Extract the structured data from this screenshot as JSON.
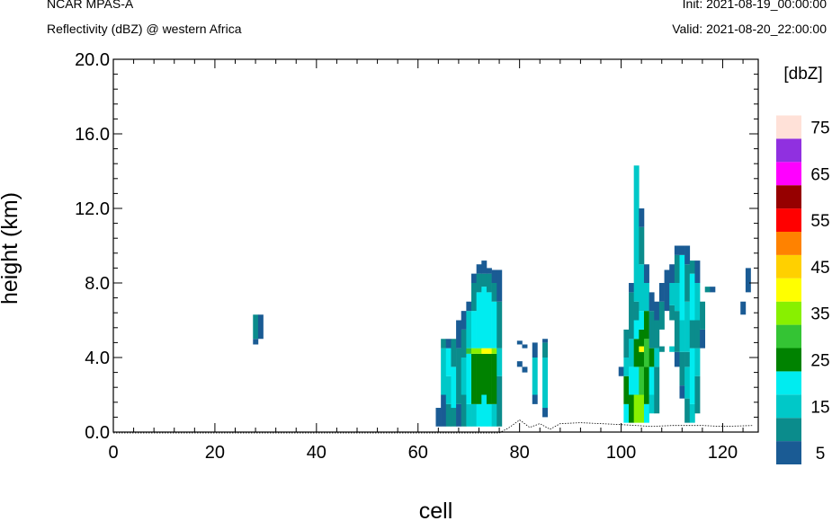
{
  "header": {
    "model": "NCAR MPAS-A",
    "field": "Reflectivity (dBZ) @ western Africa",
    "init": "Init: 2021-08-19_00:00:00",
    "valid": "Valid: 2021-08-20_22:00:00"
  },
  "chart_data": {
    "type": "heatmap",
    "title": "Reflectivity (dBZ) @ western Africa",
    "xlabel": "cell",
    "ylabel": "height (km)",
    "xlim": [
      0,
      127
    ],
    "ylim": [
      0,
      20
    ],
    "x_ticks": [
      "0",
      "20",
      "40",
      "60",
      "80",
      "100",
      "120"
    ],
    "y_ticks": [
      "0.0",
      "4.0",
      "8.0",
      "12.0",
      "16.0",
      "20.0"
    ],
    "colorbar": {
      "unit": "[dbZ]",
      "levels": [
        5,
        10,
        15,
        20,
        25,
        30,
        35,
        40,
        45,
        50,
        55,
        60,
        65,
        70,
        75
      ],
      "labels": [
        "5",
        "15",
        "25",
        "35",
        "45",
        "55",
        "65",
        "75"
      ],
      "colors": [
        "#1a5b94",
        "#0b8c8c",
        "#00c8c8",
        "#00ecf0",
        "#008200",
        "#34c434",
        "#88f000",
        "#ffff00",
        "#ffd000",
        "#ff8200",
        "#ff0000",
        "#960000",
        "#ff00ff",
        "#9030e0",
        "#ffe1d8"
      ]
    },
    "columns": [
      {
        "x": 28,
        "segs": [
          [
            4.7,
            5.0,
            5
          ],
          [
            5.0,
            6.3,
            10
          ]
        ]
      },
      {
        "x": 29,
        "segs": [
          [
            5.0,
            6.3,
            5
          ]
        ]
      },
      {
        "x": 64,
        "segs": [
          [
            0.3,
            1.3,
            5
          ]
        ]
      },
      {
        "x": 65,
        "segs": [
          [
            0.3,
            2.0,
            5
          ],
          [
            2.0,
            4.5,
            15
          ],
          [
            4.5,
            5.0,
            10
          ]
        ]
      },
      {
        "x": 66,
        "segs": [
          [
            0.3,
            1.5,
            10
          ],
          [
            1.5,
            3.0,
            15
          ],
          [
            3.0,
            4.5,
            20
          ],
          [
            4.5,
            5.0,
            5
          ]
        ]
      },
      {
        "x": 67,
        "segs": [
          [
            0.3,
            1.3,
            10
          ],
          [
            1.3,
            3.5,
            20
          ],
          [
            3.5,
            5.0,
            10
          ]
        ]
      },
      {
        "x": 68,
        "segs": [
          [
            0.3,
            1.5,
            5
          ],
          [
            1.5,
            4.5,
            10
          ],
          [
            4.5,
            6.0,
            5
          ]
        ]
      },
      {
        "x": 69,
        "segs": [
          [
            0.3,
            2.0,
            10
          ],
          [
            2.0,
            4.0,
            15
          ],
          [
            4.0,
            5.5,
            10
          ],
          [
            5.5,
            6.5,
            5
          ]
        ]
      },
      {
        "x": 70,
        "segs": [
          [
            0.3,
            1.5,
            15
          ],
          [
            1.5,
            4.2,
            20
          ],
          [
            4.2,
            4.5,
            30
          ],
          [
            4.5,
            6.5,
            15
          ],
          [
            6.5,
            7.0,
            5
          ]
        ]
      },
      {
        "x": 71,
        "segs": [
          [
            0.3,
            1.5,
            15
          ],
          [
            1.5,
            4.2,
            25
          ],
          [
            4.2,
            4.5,
            35
          ],
          [
            4.5,
            6.5,
            20
          ],
          [
            6.5,
            8.0,
            10
          ],
          [
            8.0,
            8.5,
            5
          ]
        ]
      },
      {
        "x": 72,
        "segs": [
          [
            0.3,
            1.5,
            20
          ],
          [
            1.5,
            4.2,
            25
          ],
          [
            4.2,
            4.5,
            35
          ],
          [
            4.5,
            7.5,
            20
          ],
          [
            7.5,
            8.5,
            10
          ],
          [
            8.5,
            9.0,
            5
          ]
        ]
      },
      {
        "x": 73,
        "segs": [
          [
            0.3,
            2.0,
            20
          ],
          [
            2.0,
            4.2,
            25
          ],
          [
            4.2,
            4.5,
            40
          ],
          [
            4.5,
            7.8,
            20
          ],
          [
            7.8,
            8.5,
            10
          ],
          [
            8.5,
            9.2,
            5
          ]
        ]
      },
      {
        "x": 74,
        "segs": [
          [
            0.3,
            1.5,
            20
          ],
          [
            1.5,
            4.2,
            25
          ],
          [
            4.2,
            4.5,
            40
          ],
          [
            4.5,
            7.5,
            20
          ],
          [
            7.5,
            8.5,
            10
          ],
          [
            8.5,
            8.8,
            5
          ]
        ]
      },
      {
        "x": 75,
        "segs": [
          [
            0.3,
            1.5,
            15
          ],
          [
            1.5,
            4.2,
            25
          ],
          [
            4.2,
            4.5,
            35
          ],
          [
            4.5,
            7.0,
            20
          ],
          [
            7.0,
            8.0,
            10
          ],
          [
            8.0,
            8.7,
            5
          ]
        ]
      },
      {
        "x": 76,
        "segs": [
          [
            0.3,
            3.0,
            10
          ],
          [
            3.0,
            4.5,
            15
          ],
          [
            4.5,
            7.0,
            10
          ],
          [
            7.0,
            8.7,
            5
          ]
        ]
      },
      {
        "x": 80,
        "segs": [
          [
            3.5,
            3.8,
            5
          ],
          [
            4.7,
            4.9,
            5
          ]
        ]
      },
      {
        "x": 81,
        "segs": [
          [
            3.2,
            3.5,
            5
          ],
          [
            4.5,
            4.7,
            5
          ]
        ]
      },
      {
        "x": 83,
        "segs": [
          [
            1.5,
            2.0,
            5
          ],
          [
            2.0,
            4.0,
            15
          ],
          [
            4.0,
            4.8,
            5
          ]
        ]
      },
      {
        "x": 85,
        "segs": [
          [
            0.8,
            1.3,
            5
          ],
          [
            1.3,
            4.0,
            15
          ],
          [
            4.0,
            4.8,
            10
          ],
          [
            4.8,
            5.0,
            5
          ]
        ]
      },
      {
        "x": 100,
        "segs": [
          [
            3.0,
            3.5,
            5
          ]
        ]
      },
      {
        "x": 101,
        "segs": [
          [
            0.5,
            1.5,
            20
          ],
          [
            1.5,
            3.0,
            25
          ],
          [
            3.0,
            4.0,
            15
          ],
          [
            4.0,
            5.5,
            10
          ]
        ]
      },
      {
        "x": 102,
        "segs": [
          [
            0.5,
            2.0,
            25
          ],
          [
            2.0,
            3.5,
            20
          ],
          [
            3.5,
            5.0,
            15
          ],
          [
            5.0,
            7.5,
            10
          ],
          [
            7.5,
            8.0,
            5
          ]
        ]
      },
      {
        "x": 103,
        "segs": [
          [
            0.5,
            2.0,
            35
          ],
          [
            2.0,
            3.5,
            20
          ],
          [
            3.5,
            5.0,
            25
          ],
          [
            5.0,
            6.0,
            20
          ],
          [
            6.0,
            7.0,
            10
          ],
          [
            7.0,
            12.0,
            15
          ],
          [
            12.0,
            14.3,
            15
          ]
        ]
      },
      {
        "x": 104,
        "segs": [
          [
            0.5,
            2.0,
            35
          ],
          [
            2.0,
            3.5,
            30
          ],
          [
            3.5,
            4.3,
            25
          ],
          [
            4.3,
            4.6,
            40
          ],
          [
            4.6,
            5.5,
            25
          ],
          [
            5.5,
            6.5,
            20
          ],
          [
            6.5,
            9.0,
            15
          ],
          [
            9.0,
            11.0,
            10
          ],
          [
            11.0,
            12.0,
            5
          ]
        ]
      },
      {
        "x": 105,
        "segs": [
          [
            0.5,
            1.5,
            20
          ],
          [
            1.5,
            3.5,
            25
          ],
          [
            3.5,
            5.0,
            30
          ],
          [
            5.0,
            6.5,
            25
          ],
          [
            6.5,
            8.0,
            15
          ],
          [
            8.0,
            9.0,
            5
          ]
        ]
      },
      {
        "x": 106,
        "segs": [
          [
            1.0,
            2.0,
            15
          ],
          [
            2.0,
            3.5,
            20
          ],
          [
            3.5,
            4.5,
            25
          ],
          [
            4.5,
            6.5,
            10
          ],
          [
            6.5,
            7.5,
            5
          ]
        ]
      },
      {
        "x": 107,
        "segs": [
          [
            1.0,
            3.5,
            10
          ],
          [
            3.5,
            4.5,
            15
          ],
          [
            4.5,
            6.0,
            10
          ],
          [
            6.0,
            7.0,
            5
          ]
        ]
      },
      {
        "x": 108,
        "segs": [
          [
            4.3,
            4.6,
            10
          ],
          [
            5.5,
            7.0,
            10
          ],
          [
            7.0,
            8.0,
            5
          ]
        ]
      },
      {
        "x": 109,
        "segs": [
          [
            6.5,
            8.7,
            5
          ]
        ]
      },
      {
        "x": 110,
        "segs": [
          [
            4.3,
            4.6,
            15
          ],
          [
            6.0,
            6.8,
            10
          ],
          [
            6.8,
            8.0,
            15
          ],
          [
            8.0,
            9.0,
            5
          ]
        ]
      },
      {
        "x": 111,
        "segs": [
          [
            3.5,
            4.3,
            5
          ],
          [
            4.3,
            6.5,
            10
          ],
          [
            6.5,
            8.0,
            15
          ],
          [
            8.0,
            9.5,
            10
          ],
          [
            9.5,
            10.0,
            5
          ]
        ]
      },
      {
        "x": 112,
        "segs": [
          [
            1.8,
            2.5,
            5
          ],
          [
            2.5,
            4.3,
            10
          ],
          [
            4.3,
            6.0,
            15
          ],
          [
            6.0,
            9.5,
            20
          ],
          [
            9.5,
            10.0,
            5
          ]
        ]
      },
      {
        "x": 113,
        "segs": [
          [
            0.5,
            1.8,
            10
          ],
          [
            1.8,
            3.5,
            15
          ],
          [
            3.5,
            4.3,
            10
          ],
          [
            4.3,
            7.0,
            15
          ],
          [
            7.0,
            9.0,
            10
          ],
          [
            9.0,
            10.0,
            5
          ]
        ]
      },
      {
        "x": 114,
        "segs": [
          [
            0.5,
            1.5,
            15
          ],
          [
            1.5,
            4.5,
            20
          ],
          [
            4.5,
            6.0,
            10
          ],
          [
            6.0,
            8.5,
            20
          ],
          [
            8.5,
            9.2,
            10
          ]
        ]
      },
      {
        "x": 115,
        "segs": [
          [
            1.0,
            3.0,
            10
          ],
          [
            3.0,
            4.5,
            15
          ],
          [
            4.5,
            6.0,
            10
          ],
          [
            6.0,
            8.0,
            15
          ],
          [
            8.0,
            9.2,
            5
          ]
        ]
      },
      {
        "x": 116,
        "segs": [
          [
            4.5,
            5.5,
            5
          ],
          [
            5.5,
            7.0,
            10
          ]
        ]
      },
      {
        "x": 117,
        "segs": [
          [
            7.5,
            7.8,
            10
          ]
        ]
      },
      {
        "x": 118,
        "segs": [
          [
            7.5,
            7.8,
            5
          ]
        ]
      },
      {
        "x": 124,
        "segs": [
          [
            6.3,
            7.0,
            5
          ]
        ]
      },
      {
        "x": 125,
        "segs": [
          [
            7.5,
            8.8,
            5
          ]
        ]
      }
    ],
    "terrain": [
      [
        0,
        0
      ],
      [
        76,
        0
      ],
      [
        78,
        0.3
      ],
      [
        80,
        0.7
      ],
      [
        82,
        0.3
      ],
      [
        84,
        0.5
      ],
      [
        86,
        0.2
      ],
      [
        88,
        0.5
      ],
      [
        92,
        0.55
      ],
      [
        96,
        0.5
      ],
      [
        100,
        0.45
      ],
      [
        106,
        0.35
      ],
      [
        110,
        0.4
      ],
      [
        116,
        0.4
      ],
      [
        120,
        0.35
      ],
      [
        126,
        0.4
      ]
    ]
  }
}
